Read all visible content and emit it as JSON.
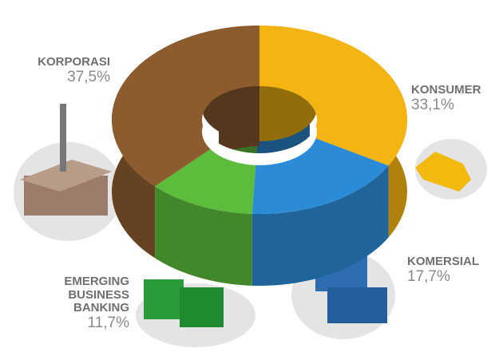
{
  "chart_data": {
    "type": "pie",
    "categories": [
      "KONSUMER",
      "KOMERSIAL",
      "EMERGING BUSINESS BANKING",
      "KORPORASI"
    ],
    "values": [
      33.1,
      17.7,
      11.7,
      37.5
    ],
    "value_labels": [
      "33,1%",
      "17,7%",
      "11,7%",
      "37,5%"
    ],
    "colors": [
      "#f4b512",
      "#2b8bd6",
      "#5cbd3c",
      "#8c5c2e"
    ]
  }
}
